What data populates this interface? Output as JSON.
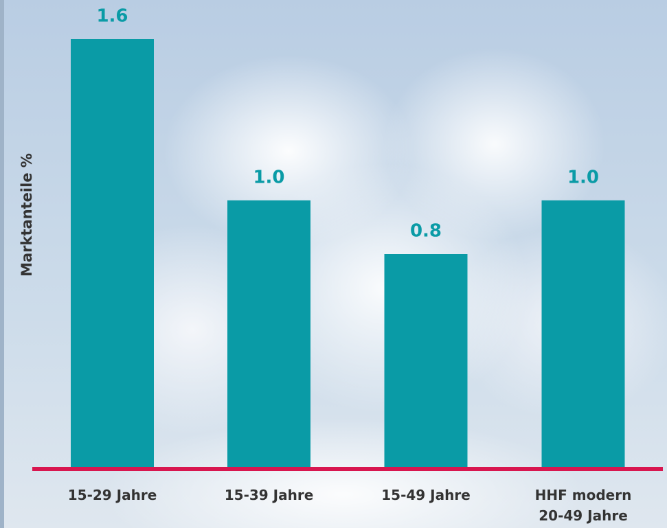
{
  "chart_data": {
    "type": "bar",
    "y_label": "Marktanteile %",
    "categories": [
      "15-29 Jahre",
      "15-39 Jahre",
      "15-49 Jahre",
      "HHF modern 20-49 Jahre"
    ],
    "values": [
      1.6,
      1.0,
      0.8,
      1.0
    ],
    "value_labels": [
      "1.6",
      "1.0",
      "0.8",
      "1.0"
    ],
    "color": "#0a9ba6",
    "ylim": [
      0,
      1.6
    ]
  }
}
